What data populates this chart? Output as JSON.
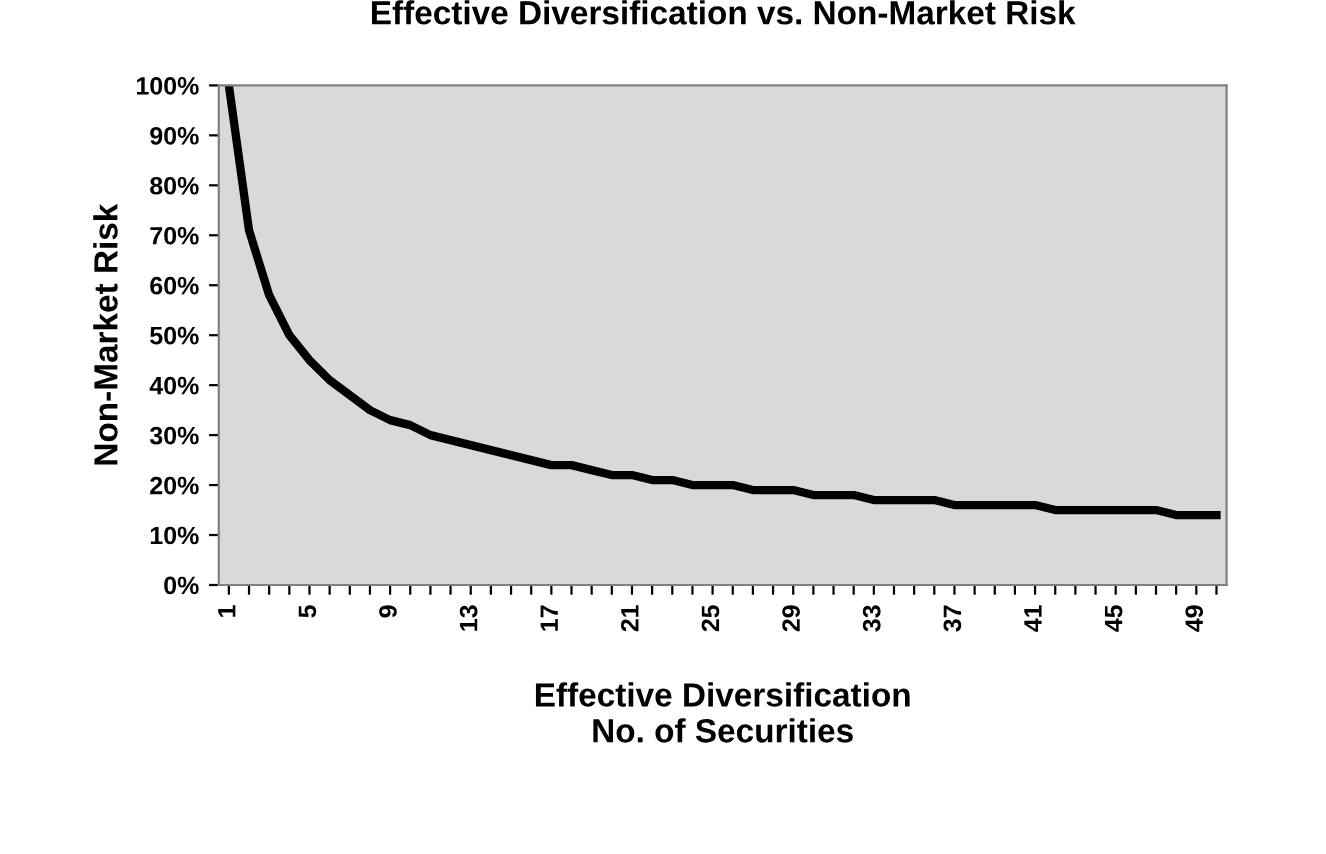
{
  "chart_data": {
    "type": "line",
    "title": "Effective Diversification vs. Non-Market Risk",
    "xlabel": "Effective Diversification\nNo. of Securities",
    "ylabel": "Non-Market Risk",
    "categories": [
      "1",
      null,
      null,
      null,
      "5",
      null,
      null,
      null,
      "9",
      null,
      null,
      null,
      "13",
      null,
      null,
      null,
      "17",
      null,
      null,
      null,
      "21",
      null,
      null,
      null,
      "25",
      null,
      null,
      null,
      "29",
      null,
      null,
      null,
      "33",
      null,
      null,
      null,
      "37",
      null,
      null,
      null,
      "41",
      null,
      null,
      null,
      "45",
      null,
      null,
      null,
      "49",
      null
    ],
    "series": [
      {
        "color": "#000000",
        "values": [
          100,
          71,
          58,
          50,
          45,
          41,
          38,
          35,
          33,
          32,
          30,
          29,
          28,
          27,
          26,
          25,
          24,
          24,
          23,
          22,
          22,
          21,
          21,
          20,
          20,
          20,
          19,
          19,
          19,
          18,
          18,
          18,
          17,
          17,
          17,
          17,
          16,
          16,
          16,
          16,
          16,
          15,
          15,
          15,
          15,
          15,
          15,
          14,
          14,
          14
        ]
      }
    ],
    "ylim": [
      0,
      100
    ],
    "yticks": [
      {
        "value": 0,
        "label": "0%"
      },
      {
        "value": 10,
        "label": "10%"
      },
      {
        "value": 20,
        "label": "20%"
      },
      {
        "value": 30,
        "label": "30%"
      },
      {
        "value": 40,
        "label": "40%"
      },
      {
        "value": 50,
        "label": "50%"
      },
      {
        "value": 60,
        "label": "60%"
      },
      {
        "value": 70,
        "label": "70%"
      },
      {
        "value": 80,
        "label": "80%"
      },
      {
        "value": 90,
        "label": "90%"
      },
      {
        "value": 100,
        "label": "100%"
      }
    ],
    "grid": false,
    "legend": false,
    "marker": "none",
    "line_style": "solid"
  }
}
